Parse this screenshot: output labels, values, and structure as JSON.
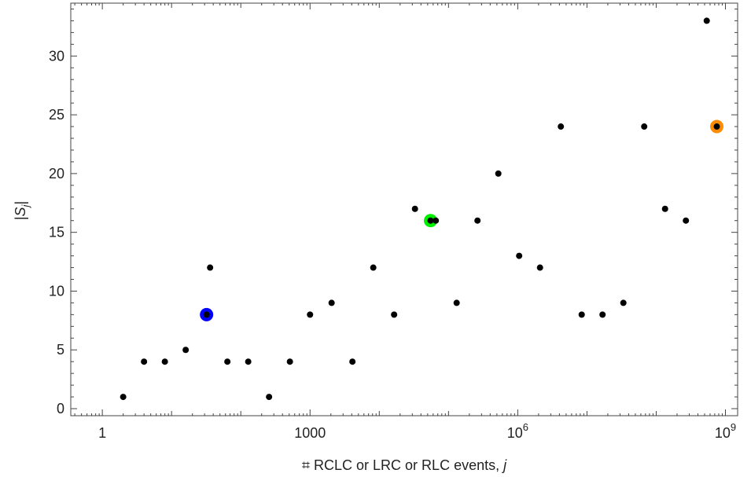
{
  "chart_data": {
    "type": "scatter",
    "title": "",
    "xscale": "log",
    "xlim": [
      0.35,
      1500000000
    ],
    "ylim": [
      -0.6,
      34.5
    ],
    "xlabel_prefix": "⌗ RCLC or LRC or RLC events, ",
    "xlabel_var": "j",
    "ylabel": "|S_j|",
    "x_ticks": [
      {
        "value": 1,
        "label": "1",
        "exp": ""
      },
      {
        "value": 1000,
        "label": "1000",
        "exp": ""
      },
      {
        "value": 1000000,
        "label": "10",
        "exp": "6"
      },
      {
        "value": 1000000000,
        "label": "10",
        "exp": "9"
      }
    ],
    "y_ticks": [
      0,
      5,
      10,
      15,
      20,
      25,
      30
    ],
    "points": [
      {
        "x": 2,
        "y": 1
      },
      {
        "x": 4,
        "y": 4
      },
      {
        "x": 8,
        "y": 4
      },
      {
        "x": 16,
        "y": 5
      },
      {
        "x": 32,
        "y": 8
      },
      {
        "x": 36,
        "y": 12
      },
      {
        "x": 64,
        "y": 4
      },
      {
        "x": 128,
        "y": 4
      },
      {
        "x": 256,
        "y": 1
      },
      {
        "x": 512,
        "y": 4
      },
      {
        "x": 1000,
        "y": 8
      },
      {
        "x": 2048,
        "y": 9
      },
      {
        "x": 4096,
        "y": 4
      },
      {
        "x": 8192,
        "y": 12
      },
      {
        "x": 16384,
        "y": 8
      },
      {
        "x": 32768,
        "y": 17
      },
      {
        "x": 55000,
        "y": 16
      },
      {
        "x": 65536,
        "y": 16
      },
      {
        "x": 131072,
        "y": 9
      },
      {
        "x": 262144,
        "y": 16
      },
      {
        "x": 524288,
        "y": 20
      },
      {
        "x": 1048576,
        "y": 13
      },
      {
        "x": 2097152,
        "y": 12
      },
      {
        "x": 4194304,
        "y": 24
      },
      {
        "x": 8388608,
        "y": 8
      },
      {
        "x": 16777216,
        "y": 8
      },
      {
        "x": 33554432,
        "y": 9
      },
      {
        "x": 67108864,
        "y": 24
      },
      {
        "x": 134217728,
        "y": 17
      },
      {
        "x": 268435456,
        "y": 16
      },
      {
        "x": 536870912,
        "y": 33
      },
      {
        "x": 750000000,
        "y": 24
      }
    ],
    "highlights": [
      {
        "x": 32,
        "y": 8,
        "color": "#0000ff"
      },
      {
        "x": 55000,
        "y": 16,
        "color": "#00ee00"
      },
      {
        "x": 750000000,
        "y": 24,
        "color": "#ff8c00"
      }
    ],
    "colors": {
      "points": "#000000",
      "frame": "#444444"
    }
  }
}
